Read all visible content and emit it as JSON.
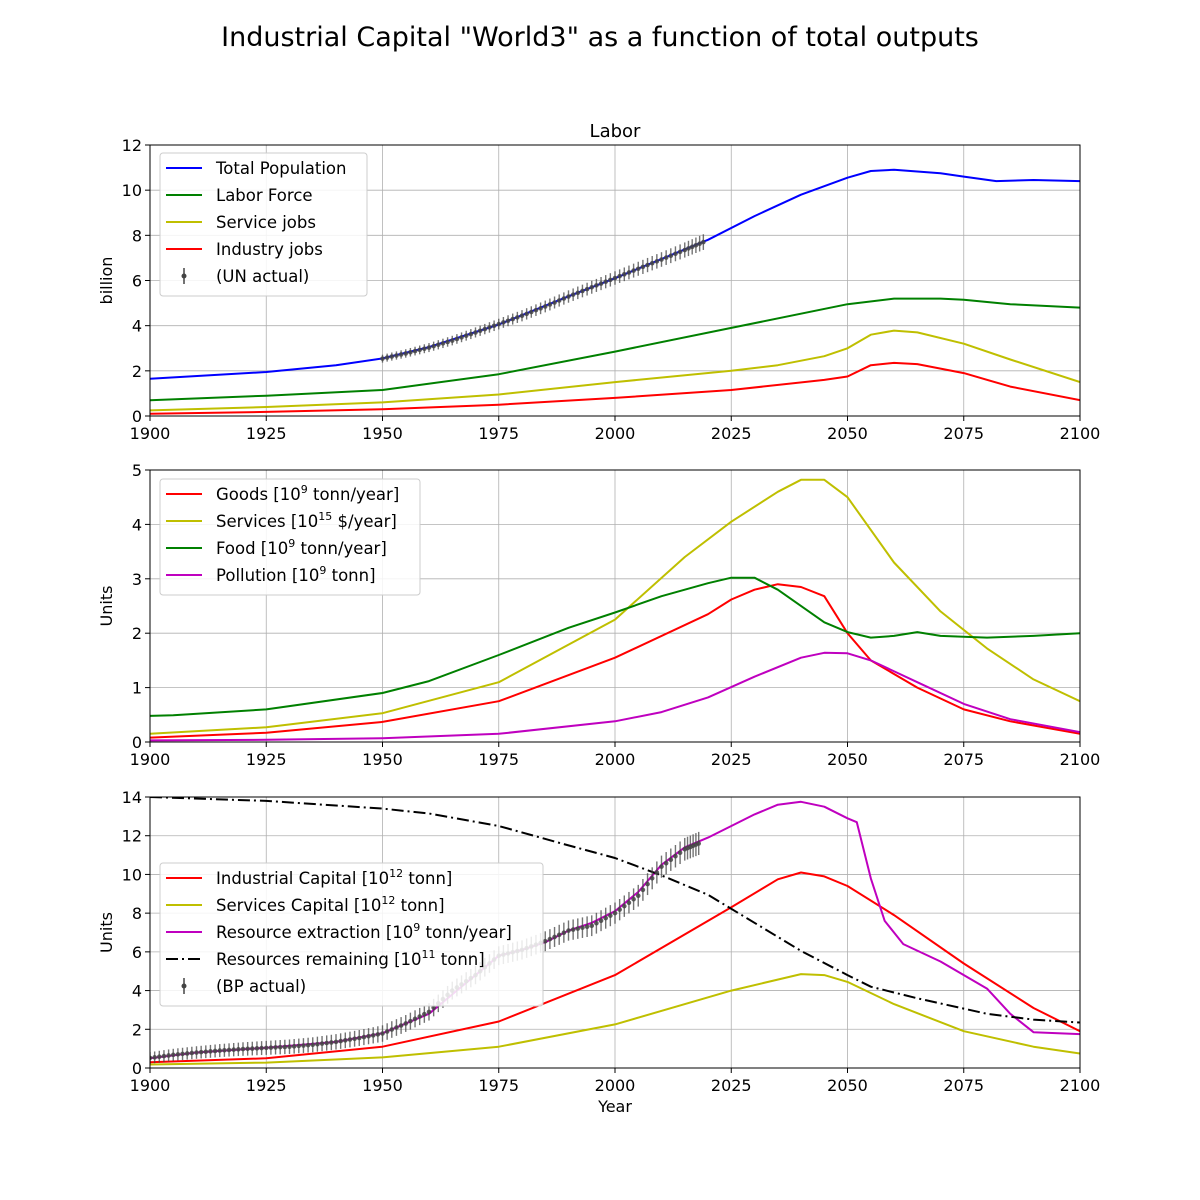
{
  "figure": {
    "title": "Industrial Capital \"World3\" as a function of total outputs"
  },
  "colors": {
    "blue": "#0000ff",
    "green": "#008000",
    "yellow": "#bfbf00",
    "red": "#ff0000",
    "magenta": "#bf00bf",
    "black": "#000000",
    "obs": "#444444"
  },
  "chart_data": [
    {
      "type": "line",
      "title": "Labor",
      "xlabel": "",
      "ylabel": "billion",
      "xlim": [
        1900,
        2100
      ],
      "ylim": [
        0,
        12
      ],
      "xticks": [
        "1900",
        "1925",
        "1950",
        "1975",
        "2000",
        "2025",
        "2050",
        "2075",
        "2100"
      ],
      "yticks": [
        "0",
        "2",
        "4",
        "6",
        "8",
        "10",
        "12"
      ],
      "grid": true,
      "legend": "top-left",
      "series": [
        {
          "name": "Total Population",
          "color_key": "blue",
          "style": "solid",
          "x": [
            1900,
            1925,
            1940,
            1950,
            1960,
            1975,
            1990,
            2000,
            2010,
            2020,
            2030,
            2040,
            2050,
            2055,
            2060,
            2070,
            2075,
            2082,
            2090,
            2100
          ],
          "y": [
            1.65,
            1.95,
            2.25,
            2.55,
            3.05,
            4.05,
            5.3,
            6.1,
            6.95,
            7.8,
            8.85,
            9.8,
            10.55,
            10.85,
            10.9,
            10.75,
            10.6,
            10.4,
            10.45,
            10.4
          ]
        },
        {
          "name": "Labor Force",
          "color_key": "green",
          "style": "solid",
          "x": [
            1900,
            1925,
            1950,
            1975,
            2000,
            2025,
            2050,
            2060,
            2070,
            2075,
            2085,
            2100
          ],
          "y": [
            0.7,
            0.9,
            1.15,
            1.85,
            2.85,
            3.9,
            4.95,
            5.2,
            5.2,
            5.15,
            4.95,
            4.8
          ]
        },
        {
          "name": "Service jobs",
          "color_key": "yellow",
          "style": "solid",
          "x": [
            1900,
            1925,
            1950,
            1975,
            2000,
            2025,
            2035,
            2045,
            2050,
            2055,
            2060,
            2065,
            2075,
            2085,
            2100
          ],
          "y": [
            0.25,
            0.4,
            0.6,
            0.95,
            1.5,
            2.0,
            2.25,
            2.65,
            3.0,
            3.6,
            3.78,
            3.7,
            3.2,
            2.5,
            1.5
          ]
        },
        {
          "name": "Industry jobs",
          "color_key": "red",
          "style": "solid",
          "x": [
            1900,
            1925,
            1950,
            1975,
            2000,
            2025,
            2045,
            2050,
            2055,
            2060,
            2065,
            2075,
            2085,
            2100
          ],
          "y": [
            0.1,
            0.18,
            0.3,
            0.5,
            0.8,
            1.15,
            1.6,
            1.75,
            2.25,
            2.35,
            2.3,
            1.9,
            1.3,
            0.7
          ]
        },
        {
          "name": "(UN actual)",
          "color_key": "obs",
          "style": "errorbar",
          "x": [
            1950,
            1955,
            1960,
            1965,
            1970,
            1975,
            1980,
            1985,
            1990,
            1995,
            2000,
            2005,
            2010,
            2015,
            2019
          ],
          "y": [
            2.54,
            2.77,
            3.03,
            3.34,
            3.7,
            4.07,
            4.44,
            4.85,
            5.29,
            5.7,
            6.11,
            6.52,
            6.93,
            7.35,
            7.7
          ],
          "err": 0.35
        }
      ]
    },
    {
      "type": "line",
      "title": "",
      "xlabel": "",
      "ylabel": "Units",
      "xlim": [
        1900,
        2100
      ],
      "ylim": [
        0,
        5
      ],
      "xticks": [
        "1900",
        "1925",
        "1950",
        "1975",
        "2000",
        "2025",
        "2050",
        "2075",
        "2100"
      ],
      "yticks": [
        "0",
        "1",
        "2",
        "3",
        "4",
        "5"
      ],
      "grid": true,
      "legend": "top-left",
      "series": [
        {
          "name": "Goods [10",
          "sup": "9",
          "name_tail": " tonn/year]",
          "color_key": "red",
          "style": "solid",
          "x": [
            1900,
            1925,
            1950,
            1975,
            2000,
            2020,
            2025,
            2030,
            2035,
            2040,
            2045,
            2050,
            2055,
            2065,
            2075,
            2085,
            2100
          ],
          "y": [
            0.08,
            0.17,
            0.37,
            0.75,
            1.55,
            2.35,
            2.62,
            2.8,
            2.9,
            2.85,
            2.68,
            2.0,
            1.5,
            1.0,
            0.6,
            0.38,
            0.15
          ]
        },
        {
          "name": "Services [10",
          "sup": "15",
          "name_tail": " $/year]",
          "color_key": "yellow",
          "style": "solid",
          "x": [
            1900,
            1925,
            1950,
            1975,
            2000,
            2015,
            2025,
            2035,
            2040,
            2045,
            2050,
            2060,
            2070,
            2080,
            2090,
            2100
          ],
          "y": [
            0.15,
            0.27,
            0.53,
            1.1,
            2.25,
            3.4,
            4.05,
            4.6,
            4.82,
            4.82,
            4.5,
            3.3,
            2.4,
            1.72,
            1.15,
            0.75
          ]
        },
        {
          "name": "Food [10",
          "sup": "9",
          "name_tail": " tonn/year]",
          "color_key": "green",
          "style": "solid",
          "x": [
            1900,
            1905,
            1925,
            1950,
            1960,
            1975,
            1990,
            2000,
            2010,
            2020,
            2025,
            2030,
            2035,
            2045,
            2050,
            2055,
            2060,
            2065,
            2070,
            2080,
            2090,
            2100
          ],
          "y": [
            0.48,
            0.49,
            0.6,
            0.9,
            1.12,
            1.6,
            2.1,
            2.38,
            2.68,
            2.92,
            3.02,
            3.02,
            2.8,
            2.2,
            2.02,
            1.92,
            1.95,
            2.02,
            1.95,
            1.92,
            1.95,
            2.0
          ]
        },
        {
          "name": "Pollution [10",
          "sup": "9",
          "name_tail": " tonn]",
          "color_key": "magenta",
          "style": "solid",
          "x": [
            1900,
            1925,
            1950,
            1975,
            2000,
            2010,
            2020,
            2030,
            2040,
            2045,
            2050,
            2055,
            2065,
            2075,
            2085,
            2100
          ],
          "y": [
            0.03,
            0.04,
            0.07,
            0.15,
            0.38,
            0.55,
            0.82,
            1.2,
            1.55,
            1.64,
            1.63,
            1.5,
            1.1,
            0.7,
            0.42,
            0.18
          ]
        }
      ]
    },
    {
      "type": "line",
      "title": "",
      "xlabel": "Year",
      "ylabel": "Units",
      "xlim": [
        1900,
        2100
      ],
      "ylim": [
        0,
        14
      ],
      "xticks": [
        "1900",
        "1925",
        "1950",
        "1975",
        "2000",
        "2025",
        "2050",
        "2075",
        "2100"
      ],
      "yticks": [
        "0",
        "2",
        "4",
        "6",
        "8",
        "10",
        "12",
        "14"
      ],
      "grid": true,
      "legend": "center-left",
      "series": [
        {
          "name": "Industrial Capital [10",
          "sup": "12",
          "name_tail": " tonn]",
          "color_key": "red",
          "style": "solid",
          "x": [
            1900,
            1925,
            1950,
            1975,
            2000,
            2025,
            2035,
            2040,
            2045,
            2050,
            2060,
            2075,
            2090,
            2100
          ],
          "y": [
            0.3,
            0.5,
            1.1,
            2.4,
            4.8,
            8.3,
            9.75,
            10.1,
            9.9,
            9.4,
            7.9,
            5.4,
            3.1,
            1.9
          ]
        },
        {
          "name": "Services Capital [10",
          "sup": "12",
          "name_tail": " tonn]",
          "color_key": "yellow",
          "style": "solid",
          "x": [
            1900,
            1925,
            1950,
            1975,
            2000,
            2025,
            2040,
            2045,
            2050,
            2060,
            2075,
            2090,
            2100
          ],
          "y": [
            0.18,
            0.28,
            0.55,
            1.1,
            2.25,
            4.0,
            4.85,
            4.8,
            4.45,
            3.3,
            1.9,
            1.1,
            0.75
          ]
        },
        {
          "name": "Resource extraction [10",
          "sup": "9",
          "name_tail": " tonn/year]",
          "color_key": "magenta",
          "style": "solid",
          "x": [
            1900,
            1910,
            1925,
            1940,
            1950,
            1960,
            1965,
            1970,
            1975,
            1980,
            1985,
            1990,
            1995,
            2000,
            2005,
            2010,
            2015,
            2020,
            2025,
            2030,
            2035,
            2040,
            2045,
            2050,
            2052,
            2055,
            2058,
            2062,
            2070,
            2080,
            2085,
            2090,
            2100
          ],
          "y": [
            0.5,
            0.8,
            1.05,
            1.35,
            1.8,
            2.8,
            3.8,
            4.8,
            5.8,
            6.1,
            6.5,
            7.1,
            7.5,
            8.1,
            9.1,
            10.5,
            11.4,
            11.9,
            12.5,
            13.1,
            13.6,
            13.75,
            13.5,
            12.9,
            12.7,
            9.8,
            7.6,
            6.4,
            5.5,
            4.1,
            2.8,
            1.85,
            1.75
          ]
        },
        {
          "name": "Resources remaining [10",
          "sup": "11",
          "name_tail": " tonn]",
          "color_key": "black",
          "style": "dashdot",
          "x": [
            1900,
            1925,
            1950,
            1960,
            1975,
            1990,
            2000,
            2010,
            2020,
            2030,
            2040,
            2050,
            2055,
            2065,
            2080,
            2090,
            2100
          ],
          "y": [
            14.0,
            13.8,
            13.4,
            13.15,
            12.5,
            11.5,
            10.85,
            9.95,
            8.95,
            7.5,
            6.05,
            4.8,
            4.2,
            3.6,
            2.8,
            2.5,
            2.35
          ]
        },
        {
          "name": "(BP actual)",
          "color_key": "obs",
          "style": "errorbar",
          "x": [
            1900,
            1905,
            1910,
            1915,
            1920,
            1925,
            1930,
            1935,
            1940,
            1945,
            1950,
            1955,
            1960,
            1965,
            1970,
            1975,
            1980,
            1985,
            1990,
            1995,
            2000,
            2005,
            2010,
            2015,
            2018
          ],
          "y": [
            0.52,
            0.68,
            0.8,
            0.9,
            0.98,
            1.04,
            1.1,
            1.2,
            1.35,
            1.55,
            1.78,
            2.3,
            2.9,
            4.0,
            4.8,
            5.8,
            6.1,
            6.55,
            7.1,
            7.35,
            8.0,
            8.9,
            10.4,
            11.3,
            11.6
          ],
          "err": 0.6
        }
      ]
    }
  ]
}
